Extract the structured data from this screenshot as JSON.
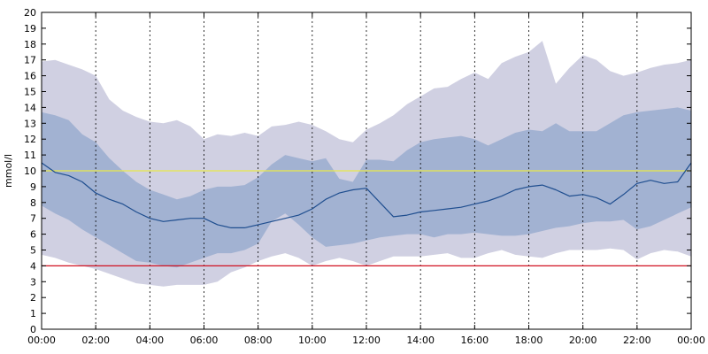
{
  "chart_data": {
    "type": "area",
    "ylabel": "mmol/l",
    "ylim": [
      0,
      20
    ],
    "yticks": [
      0,
      1,
      2,
      3,
      4,
      5,
      6,
      7,
      8,
      9,
      10,
      11,
      12,
      13,
      14,
      15,
      16,
      17,
      18,
      19,
      20
    ],
    "x_tick_labels": [
      "00:00",
      "02:00",
      "04:00",
      "06:00",
      "08:00",
      "10:00",
      "12:00",
      "14:00",
      "16:00",
      "18:00",
      "20:00",
      "22:00",
      "00:00"
    ],
    "x_hours": [
      0,
      0.5,
      1,
      1.5,
      2,
      2.5,
      3,
      3.5,
      4,
      4.5,
      5,
      5.5,
      6,
      6.5,
      7,
      7.5,
      8,
      8.5,
      9,
      9.5,
      10,
      10.5,
      11,
      11.5,
      12,
      12.5,
      13,
      13.5,
      14,
      14.5,
      15,
      15.5,
      16,
      16.5,
      17,
      17.5,
      18,
      18.5,
      19,
      19.5,
      20,
      20.5,
      21,
      21.5,
      22,
      22.5,
      23,
      23.5,
      24
    ],
    "grid": "vertical dashed lines at labeled hours",
    "reference_lines": [
      {
        "value": 10,
        "color": "#e8e84a"
      },
      {
        "value": 4,
        "color": "#d01020"
      }
    ],
    "bands": [
      {
        "fill": "#d0d0e2",
        "lower": [
          4.7,
          4.5,
          4.2,
          4.0,
          3.8,
          3.5,
          3.2,
          2.9,
          2.8,
          2.7,
          2.8,
          2.8,
          2.8,
          3.0,
          3.6,
          3.9,
          4.3,
          4.6,
          4.8,
          4.5,
          4.0,
          4.3,
          4.5,
          4.3,
          4.0,
          4.3,
          4.6,
          4.6,
          4.6,
          4.7,
          4.8,
          4.5,
          4.5,
          4.8,
          5.0,
          4.7,
          4.6,
          4.5,
          4.8,
          5.0,
          5.0,
          5.0,
          5.1,
          5.0,
          4.4,
          4.8,
          5.0,
          4.9,
          4.6
        ],
        "upper": [
          16.9,
          17.0,
          16.7,
          16.4,
          16.0,
          14.5,
          13.8,
          13.4,
          13.1,
          13.0,
          13.2,
          12.8,
          12.0,
          12.3,
          12.2,
          12.4,
          12.2,
          12.8,
          12.9,
          13.1,
          12.9,
          12.5,
          12.0,
          11.8,
          12.6,
          13.0,
          13.5,
          14.2,
          14.7,
          15.2,
          15.3,
          15.8,
          16.2,
          15.8,
          16.8,
          17.2,
          17.5,
          18.2,
          15.5,
          16.5,
          17.3,
          17.0,
          16.3,
          16.0,
          16.2,
          16.5,
          16.7,
          16.8,
          17.0
        ]
      },
      {
        "fill": "#a2b2d2",
        "lower": [
          7.8,
          7.3,
          6.9,
          6.3,
          5.8,
          5.3,
          4.8,
          4.3,
          4.2,
          4.0,
          3.9,
          4.2,
          4.5,
          4.8,
          4.8,
          5.0,
          5.4,
          6.8,
          7.3,
          6.6,
          5.8,
          5.2,
          5.3,
          5.4,
          5.6,
          5.8,
          5.9,
          6.0,
          6.0,
          5.8,
          6.0,
          6.0,
          6.1,
          6.0,
          5.9,
          5.9,
          6.0,
          6.2,
          6.4,
          6.5,
          6.7,
          6.8,
          6.8,
          6.9,
          6.3,
          6.5,
          6.9,
          7.3,
          7.7
        ],
        "upper": [
          13.7,
          13.5,
          13.2,
          12.3,
          11.8,
          10.8,
          10.0,
          9.3,
          8.8,
          8.5,
          8.2,
          8.4,
          8.8,
          9.0,
          9.0,
          9.1,
          9.6,
          10.4,
          11.0,
          10.8,
          10.6,
          10.8,
          9.5,
          9.3,
          10.7,
          10.7,
          10.6,
          11.3,
          11.8,
          12.0,
          12.1,
          12.2,
          12.0,
          11.6,
          12.0,
          12.4,
          12.6,
          12.5,
          13.0,
          12.5,
          12.5,
          12.5,
          13.0,
          13.5,
          13.7,
          13.8,
          13.9,
          14.0,
          13.8
        ]
      }
    ],
    "series": [
      {
        "color": "#1f4e8f",
        "values": [
          10.5,
          9.9,
          9.7,
          9.3,
          8.6,
          8.2,
          7.9,
          7.4,
          7.0,
          6.8,
          6.9,
          7.0,
          7.0,
          6.6,
          6.4,
          6.4,
          6.6,
          6.8,
          7.0,
          7.2,
          7.6,
          8.2,
          8.6,
          8.8,
          8.9,
          8.0,
          7.1,
          7.2,
          7.4,
          7.5,
          7.6,
          7.7,
          7.9,
          8.1,
          8.4,
          8.8,
          9.0,
          9.1,
          8.8,
          8.4,
          8.5,
          8.3,
          7.9,
          8.5,
          9.2,
          9.4,
          9.2,
          9.3,
          10.5
        ]
      }
    ]
  }
}
